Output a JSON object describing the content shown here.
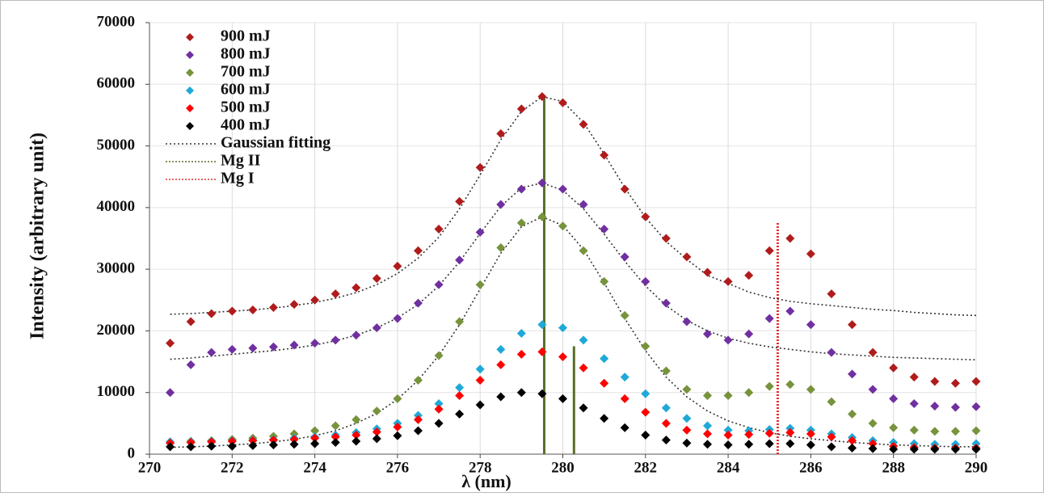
{
  "chart_data": {
    "type": "scatter",
    "xlabel": "λ (nm)",
    "ylabel": "Intensity (arbitrary unit)",
    "xlim": [
      270,
      290
    ],
    "ylim": [
      0,
      70000
    ],
    "xticks": [
      270,
      272,
      274,
      276,
      278,
      280,
      282,
      284,
      286,
      288,
      290
    ],
    "yticks": [
      0,
      10000,
      20000,
      30000,
      40000,
      50000,
      60000,
      70000
    ],
    "grid": true,
    "x": [
      270.5,
      271,
      271.5,
      272,
      272.5,
      273,
      273.5,
      274,
      274.5,
      275,
      275.5,
      276,
      276.5,
      277,
      277.5,
      278,
      278.5,
      279,
      279.5,
      280,
      280.5,
      281,
      281.5,
      282,
      282.5,
      283,
      283.5,
      284,
      284.5,
      285,
      285.5,
      286,
      286.5,
      287,
      287.5,
      288,
      288.5,
      289,
      289.5,
      290
    ],
    "series": [
      {
        "name": "900 mJ",
        "color": "#b01c1c",
        "values": [
          18000,
          21500,
          22800,
          23200,
          23400,
          23800,
          24300,
          25000,
          26000,
          27000,
          28500,
          30500,
          33000,
          36500,
          41000,
          46500,
          52000,
          56000,
          58000,
          57000,
          53500,
          48500,
          43000,
          38500,
          35000,
          32000,
          29500,
          28000,
          29000,
          33000,
          35000,
          32500,
          26000,
          21000,
          16500,
          14000,
          12500,
          11800,
          11500,
          11800
        ]
      },
      {
        "name": "800 mJ",
        "color": "#7030a0",
        "values": [
          10000,
          14500,
          16500,
          17000,
          17200,
          17400,
          17700,
          18000,
          18500,
          19300,
          20500,
          22000,
          24500,
          27500,
          31500,
          36000,
          40500,
          43000,
          44000,
          43000,
          40500,
          36500,
          32000,
          28000,
          24500,
          21500,
          19500,
          18500,
          19500,
          22000,
          23200,
          21000,
          16500,
          13000,
          10500,
          9000,
          8200,
          7800,
          7600,
          7700
        ]
      },
      {
        "name": "700 mJ",
        "color": "#77933c",
        "values": [
          2000,
          2100,
          2200,
          2400,
          2600,
          2900,
          3300,
          3800,
          4600,
          5600,
          7000,
          9000,
          12000,
          16000,
          21500,
          27500,
          33500,
          37500,
          38500,
          37000,
          33000,
          28000,
          22500,
          17500,
          13500,
          10500,
          9500,
          9500,
          10000,
          11000,
          11300,
          10500,
          8500,
          6500,
          5000,
          4300,
          3900,
          3700,
          3700,
          3800
        ]
      },
      {
        "name": "600 mJ",
        "color": "#1fa9d8",
        "values": [
          2000,
          2000,
          2100,
          2200,
          2300,
          2400,
          2600,
          2800,
          3100,
          3500,
          4100,
          5000,
          6300,
          8200,
          10800,
          13800,
          17000,
          19600,
          21000,
          20500,
          18500,
          15500,
          12500,
          9800,
          7500,
          5800,
          4600,
          3900,
          3800,
          4000,
          4200,
          3900,
          3300,
          2700,
          2200,
          1900,
          1700,
          1600,
          1600,
          1700
        ]
      },
      {
        "name": "500 mJ",
        "color": "#ff0000",
        "values": [
          1800,
          1900,
          2000,
          2100,
          2200,
          2300,
          2400,
          2600,
          2800,
          3100,
          3600,
          4400,
          5600,
          7300,
          9500,
          12000,
          14500,
          16200,
          16600,
          15800,
          14000,
          11500,
          9000,
          6800,
          5000,
          3900,
          3300,
          3100,
          3200,
          3400,
          3500,
          3300,
          2800,
          2200,
          1700,
          1300,
          1100,
          1000,
          1000,
          1000
        ]
      },
      {
        "name": "400 mJ",
        "color": "#000000",
        "values": [
          1200,
          1200,
          1300,
          1300,
          1400,
          1500,
          1600,
          1700,
          1900,
          2100,
          2500,
          3000,
          3800,
          5000,
          6500,
          8000,
          9300,
          10000,
          9800,
          9000,
          7500,
          5800,
          4300,
          3100,
          2300,
          1800,
          1600,
          1500,
          1600,
          1700,
          1700,
          1500,
          1200,
          1000,
          900,
          800,
          800,
          800,
          800,
          800
        ]
      }
    ],
    "gaussian_fitting": {
      "name": "Gaussian fitting",
      "color": "#333333",
      "curves": [
        [
          22700,
          22800,
          23000,
          23200,
          23400,
          23700,
          24100,
          24600,
          25300,
          26200,
          27500,
          29300,
          31800,
          35200,
          39800,
          45300,
          51000,
          55600,
          58000,
          57200,
          53800,
          48700,
          43200,
          38400,
          34500,
          31600,
          29000,
          27700,
          26300,
          25400,
          24800,
          24400,
          24100,
          23800,
          23500,
          23300,
          23000,
          22800,
          22600,
          22500
        ],
        [
          15400,
          15600,
          15900,
          16200,
          16500,
          16800,
          17200,
          17700,
          18400,
          19300,
          20500,
          22100,
          24300,
          27300,
          31200,
          35800,
          40200,
          43200,
          44000,
          42800,
          39800,
          35700,
          31300,
          27300,
          24100,
          21700,
          20000,
          18800,
          18000,
          17400,
          17000,
          16600,
          16300,
          16100,
          15900,
          15700,
          15600,
          15500,
          15400,
          15300
        ],
        [
          1100,
          1200,
          1300,
          1500,
          1700,
          2000,
          2400,
          3000,
          3800,
          5000,
          6600,
          8900,
          12000,
          16000,
          21000,
          26800,
          32600,
          36900,
          38500,
          37100,
          33200,
          27800,
          22000,
          16800,
          12500,
          9300,
          7000,
          5400,
          4300,
          3500,
          2900,
          2500,
          2200,
          1900,
          1700,
          1500,
          1400,
          1300,
          1200,
          1200
        ]
      ]
    },
    "reference_lines": [
      {
        "name": "Mg II",
        "color": "#5a6e2a",
        "positions": [
          {
            "x": 279.55,
            "y": 58000
          },
          {
            "x": 280.27,
            "y": 17500
          }
        ]
      },
      {
        "name": "Mg I",
        "color": "#e03030",
        "positions": [
          {
            "x": 285.2,
            "y": 37500
          }
        ]
      }
    ]
  }
}
